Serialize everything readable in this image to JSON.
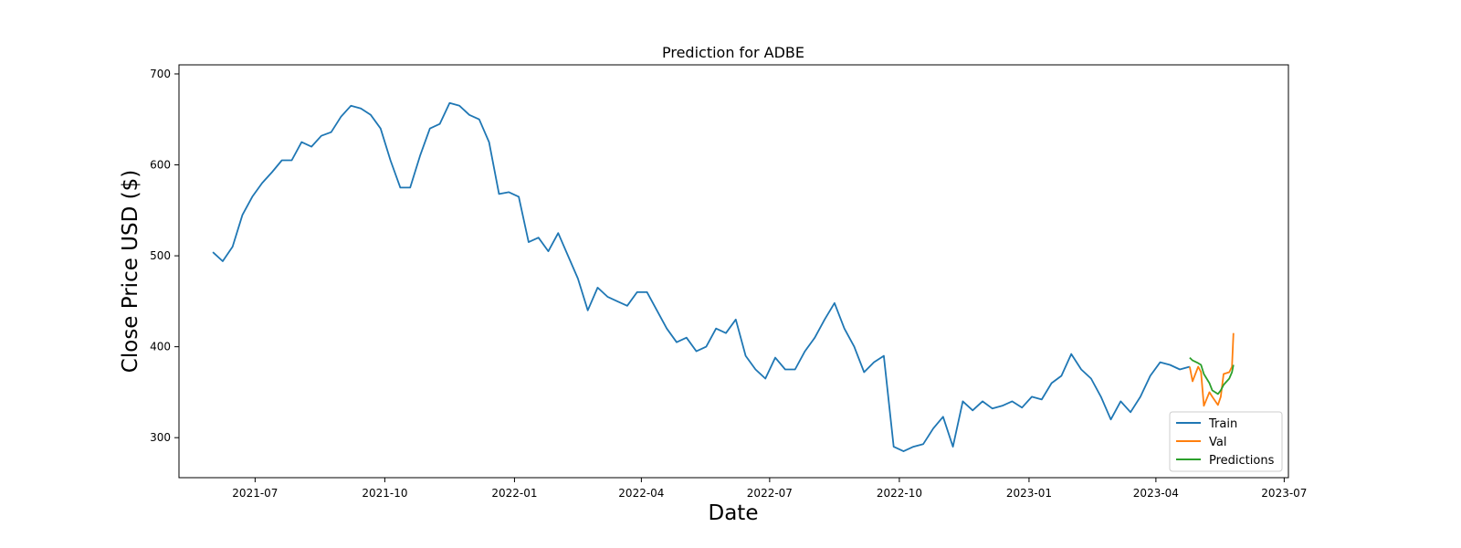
{
  "chart_data": {
    "type": "line",
    "title": "Prediction for ADBE",
    "xlabel": "Date",
    "ylabel": "Close Price USD ($)",
    "xlim": [
      "2021-05-08",
      "2023-07-04"
    ],
    "ylim": [
      256,
      710
    ],
    "x_ticks": [
      "2021-07",
      "2021-10",
      "2022-01",
      "2022-04",
      "2022-07",
      "2022-10",
      "2023-01",
      "2023-04",
      "2023-07"
    ],
    "y_ticks": [
      300,
      400,
      500,
      600,
      700
    ],
    "grid": false,
    "legend_position": "lower-right",
    "colors": {
      "Train": "#1f77b4",
      "Val": "#ff7f0e",
      "Predictions": "#2ca02c"
    },
    "series": [
      {
        "name": "Train",
        "x": [
          "2021-06-01",
          "2021-06-08",
          "2021-06-15",
          "2021-06-22",
          "2021-06-29",
          "2021-07-06",
          "2021-07-13",
          "2021-07-20",
          "2021-07-27",
          "2021-08-03",
          "2021-08-10",
          "2021-08-17",
          "2021-08-24",
          "2021-08-31",
          "2021-09-07",
          "2021-09-14",
          "2021-09-21",
          "2021-09-28",
          "2021-10-05",
          "2021-10-12",
          "2021-10-19",
          "2021-10-26",
          "2021-11-02",
          "2021-11-09",
          "2021-11-16",
          "2021-11-23",
          "2021-11-30",
          "2021-12-07",
          "2021-12-14",
          "2021-12-21",
          "2021-12-28",
          "2022-01-04",
          "2022-01-11",
          "2022-01-18",
          "2022-01-25",
          "2022-02-01",
          "2022-02-08",
          "2022-02-15",
          "2022-02-22",
          "2022-03-01",
          "2022-03-08",
          "2022-03-15",
          "2022-03-22",
          "2022-03-29",
          "2022-04-05",
          "2022-04-12",
          "2022-04-19",
          "2022-04-26",
          "2022-05-03",
          "2022-05-10",
          "2022-05-17",
          "2022-05-24",
          "2022-05-31",
          "2022-06-07",
          "2022-06-14",
          "2022-06-21",
          "2022-06-28",
          "2022-07-05",
          "2022-07-12",
          "2022-07-19",
          "2022-07-26",
          "2022-08-02",
          "2022-08-09",
          "2022-08-16",
          "2022-08-23",
          "2022-08-30",
          "2022-09-06",
          "2022-09-13",
          "2022-09-20",
          "2022-09-27",
          "2022-10-04",
          "2022-10-11",
          "2022-10-18",
          "2022-10-25",
          "2022-11-01",
          "2022-11-08",
          "2022-11-15",
          "2022-11-22",
          "2022-11-29",
          "2022-12-06",
          "2022-12-13",
          "2022-12-20",
          "2022-12-27",
          "2023-01-03",
          "2023-01-10",
          "2023-01-17",
          "2023-01-24",
          "2023-01-31",
          "2023-02-07",
          "2023-02-14",
          "2023-02-21",
          "2023-02-28",
          "2023-03-07",
          "2023-03-14",
          "2023-03-21",
          "2023-03-28",
          "2023-04-04",
          "2023-04-11",
          "2023-04-18",
          "2023-04-25"
        ],
        "values": [
          504,
          494,
          510,
          545,
          565,
          580,
          592,
          605,
          605,
          625,
          620,
          632,
          636,
          653,
          665,
          662,
          655,
          640,
          605,
          575,
          575,
          610,
          640,
          645,
          668,
          665,
          655,
          650,
          625,
          568,
          570,
          565,
          515,
          520,
          505,
          525,
          500,
          475,
          440,
          465,
          455,
          450,
          445,
          460,
          460,
          440,
          420,
          405,
          410,
          395,
          400,
          420,
          415,
          430,
          390,
          375,
          365,
          388,
          375,
          375,
          395,
          410,
          430,
          448,
          420,
          400,
          372,
          383,
          390,
          290,
          285,
          290,
          293,
          310,
          323,
          290,
          340,
          330,
          340,
          332,
          335,
          340,
          333,
          345,
          342,
          360,
          368,
          392,
          375,
          365,
          345,
          320,
          340,
          328,
          345,
          368,
          383,
          380,
          375,
          378
        ]
      },
      {
        "name": "Val",
        "x": [
          "2023-04-25",
          "2023-04-27",
          "2023-05-01",
          "2023-05-03",
          "2023-05-05",
          "2023-05-09",
          "2023-05-11",
          "2023-05-15",
          "2023-05-17",
          "2023-05-19",
          "2023-05-23",
          "2023-05-25",
          "2023-05-26"
        ],
        "values": [
          378,
          362,
          378,
          372,
          335,
          350,
          345,
          336,
          345,
          370,
          372,
          378,
          415
        ]
      },
      {
        "name": "Predictions",
        "x": [
          "2023-04-25",
          "2023-04-27",
          "2023-05-01",
          "2023-05-03",
          "2023-05-05",
          "2023-05-09",
          "2023-05-11",
          "2023-05-15",
          "2023-05-17",
          "2023-05-19",
          "2023-05-23",
          "2023-05-25",
          "2023-05-26"
        ],
        "values": [
          388,
          385,
          382,
          380,
          370,
          360,
          352,
          348,
          352,
          358,
          365,
          372,
          380
        ]
      }
    ]
  }
}
